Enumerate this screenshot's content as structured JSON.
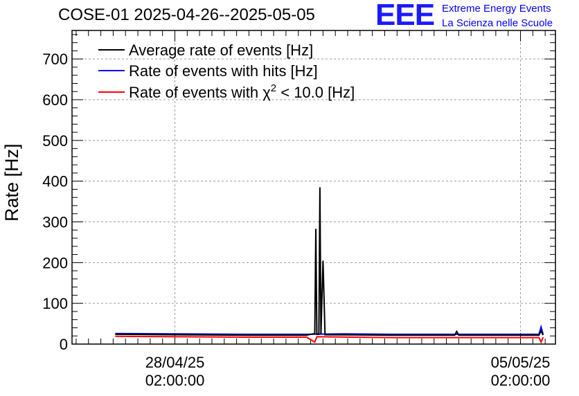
{
  "chart_data": {
    "type": "line",
    "title": "COSE-01 2025-04-26--2025-05-05",
    "xlabel": "",
    "ylabel": "Rate [Hz]",
    "ylim": [
      0,
      770
    ],
    "xlim": [
      "2025-04-26T00:00:00",
      "2025-05-05T19:00:00"
    ],
    "x_ticks": [
      {
        "x": "2025-04-28T02:00:00",
        "label_date": "28/04/25",
        "label_time": "02:00:00"
      },
      {
        "x": "2025-05-05T02:00:00",
        "label_date": "05/05/25",
        "label_time": "02:00:00"
      }
    ],
    "y_ticks": [
      0,
      100,
      200,
      300,
      400,
      500,
      600,
      700
    ],
    "grid": true,
    "legend_position": "top-left",
    "series": [
      {
        "name": "Average rate of events [Hz]",
        "color": "#000000",
        "x": [
          "2025-04-26T21:00:00",
          "2025-04-28T02:00:00",
          "2025-04-29T12:00:00",
          "2025-04-30T18:00:00",
          "2025-04-30T22:00:00",
          "2025-04-30T22:30:00",
          "2025-04-30T23:00:00",
          "2025-05-01T00:00:00",
          "2025-05-01T00:30:00",
          "2025-05-01T01:00:00",
          "2025-05-01T02:00:00",
          "2025-05-01T03:00:00",
          "2025-05-02T12:00:00",
          "2025-05-03T18:00:00",
          "2025-05-03T19:00:00",
          "2025-05-03T20:00:00",
          "2025-05-05T02:00:00",
          "2025-05-05T11:00:00",
          "2025-05-05T12:00:00",
          "2025-05-05T13:00:00"
        ],
        "y": [
          24,
          23,
          22,
          22,
          26,
          283,
          24,
          24,
          385,
          24,
          205,
          23,
          22,
          22,
          31,
          22,
          22,
          22,
          32,
          22
        ]
      },
      {
        "name": "Rate of events with hits [Hz]",
        "color": "#0000ff",
        "x": [
          "2025-04-26T21:00:00",
          "2025-04-28T02:00:00",
          "2025-04-29T12:00:00",
          "2025-04-30T18:00:00",
          "2025-05-01T12:00:00",
          "2025-05-02T12:00:00",
          "2025-05-03T18:00:00",
          "2025-05-05T02:00:00",
          "2025-05-05T11:00:00",
          "2025-05-05T12:00:00",
          "2025-05-05T13:00:00"
        ],
        "y": [
          26,
          25,
          24,
          24,
          25,
          24,
          24,
          24,
          24,
          42,
          24
        ]
      },
      {
        "name": "Rate of events with χ² < 10.0 [Hz]",
        "color": "#ff0000",
        "x": [
          "2025-04-26T21:00:00",
          "2025-04-28T02:00:00",
          "2025-04-29T12:00:00",
          "2025-04-30T18:00:00",
          "2025-04-30T22:00:00",
          "2025-04-30T23:00:00",
          "2025-05-02T12:00:00",
          "2025-05-03T18:00:00",
          "2025-05-05T02:00:00",
          "2025-05-05T11:00:00",
          "2025-05-05T12:00:00",
          "2025-05-05T13:00:00"
        ],
        "y": [
          19,
          18,
          17,
          17,
          5,
          18,
          16,
          16,
          16,
          16,
          5,
          17
        ]
      }
    ]
  },
  "legend": {
    "items": [
      {
        "label": "Average rate of events [Hz]",
        "color": "#000000"
      },
      {
        "label": "Rate of events with hits [Hz]",
        "color": "#0000ff"
      },
      {
        "label_pre": "Rate of events with ",
        "label_chi": "χ",
        "label_sup": "2",
        "label_post": " < 10.0 [Hz]",
        "color": "#ff0000"
      }
    ]
  },
  "logo": {
    "mark": "EEE",
    "line1": "Extreme Energy Events",
    "line2": "La Scienza nelle Scuole",
    "color": "#0000ff"
  }
}
